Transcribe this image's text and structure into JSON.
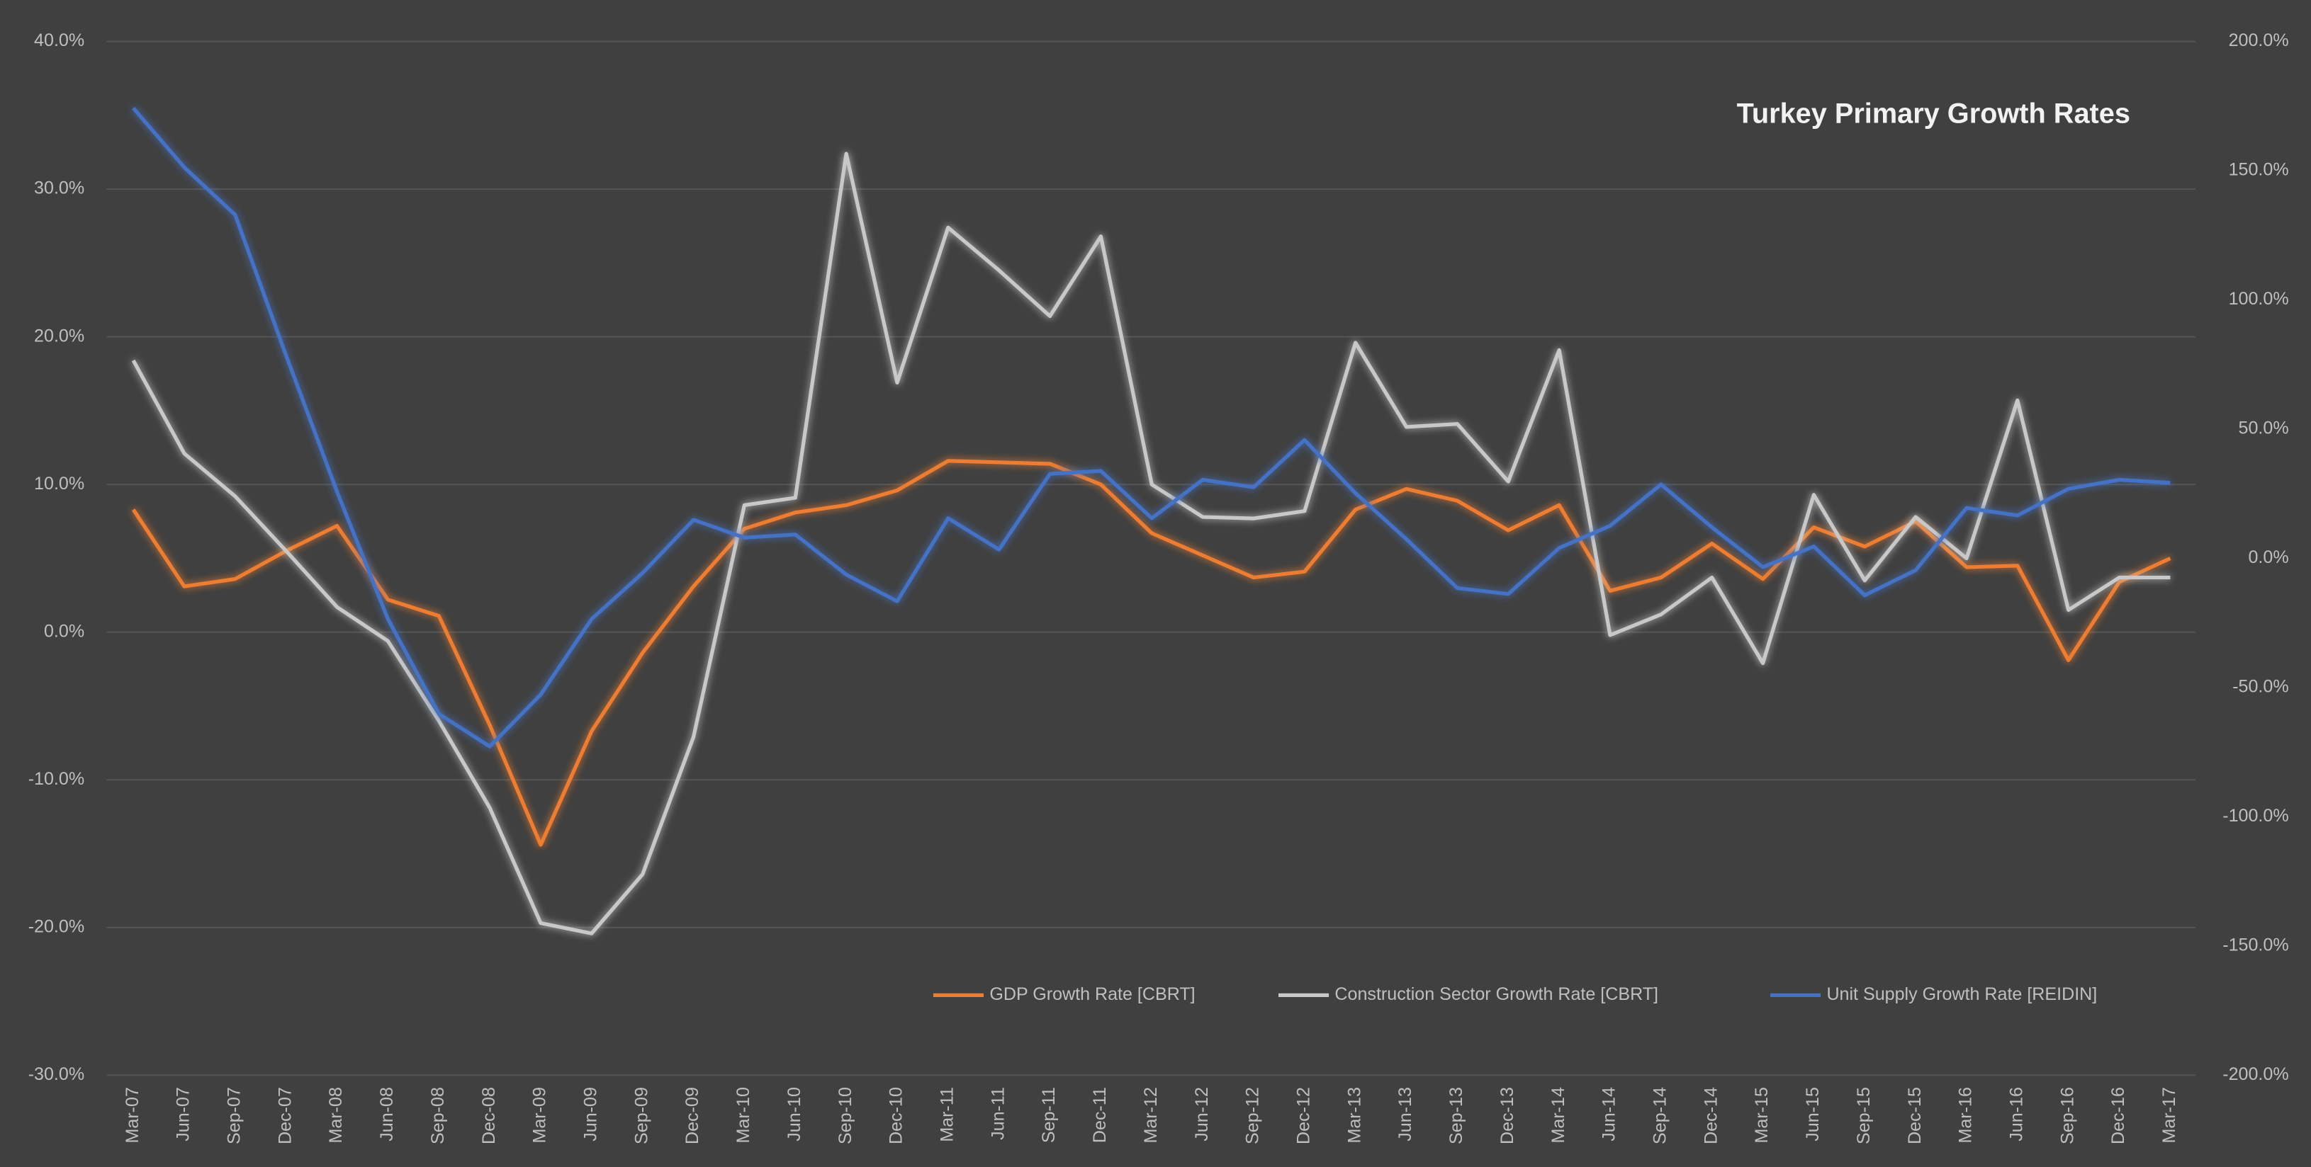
{
  "chart_data": {
    "type": "line",
    "title": "Turkey Primary Growth Rates",
    "categories": [
      "Mar-07",
      "Jun-07",
      "Sep-07",
      "Dec-07",
      "Mar-08",
      "Jun-08",
      "Sep-08",
      "Dec-08",
      "Mar-09",
      "Jun-09",
      "Sep-09",
      "Dec-09",
      "Mar-10",
      "Jun-10",
      "Sep-10",
      "Dec-10",
      "Mar-11",
      "Jun-11",
      "Sep-11",
      "Dec-11",
      "Mar-12",
      "Jun-12",
      "Sep-12",
      "Dec-12",
      "Mar-13",
      "Jun-13",
      "Sep-13",
      "Dec-13",
      "Mar-14",
      "Jun-14",
      "Sep-14",
      "Dec-14",
      "Mar-15",
      "Jun-15",
      "Sep-15",
      "Dec-15",
      "Mar-16",
      "Jun-16",
      "Sep-16",
      "Dec-16",
      "Mar-17"
    ],
    "series": [
      {
        "name": "GDP Growth Rate [CBRT]",
        "color": "#ed7d31",
        "values": [
          8.3,
          3.1,
          3.6,
          5.5,
          7.2,
          2.2,
          1.1,
          -6.3,
          -14.4,
          -6.7,
          -1.4,
          3.1,
          7.0,
          8.1,
          8.6,
          9.6,
          11.6,
          11.5,
          11.4,
          10.0,
          6.7,
          5.2,
          3.7,
          4.1,
          8.3,
          9.7,
          8.9,
          6.9,
          8.6,
          2.8,
          3.7,
          6.0,
          3.6,
          7.1,
          5.8,
          7.5,
          4.4,
          4.5,
          -1.9,
          3.4,
          5.0
        ]
      },
      {
        "name": "Construction Sector Growth Rate [CBRT]",
        "color": "#c8c8c8",
        "values": [
          18.4,
          12.1,
          9.2,
          5.5,
          1.7,
          -0.6,
          -6.0,
          -11.9,
          -19.7,
          -20.4,
          -16.4,
          -7.1,
          8.6,
          9.1,
          32.4,
          16.9,
          27.4,
          24.5,
          21.4,
          26.8,
          10.0,
          7.8,
          7.7,
          8.2,
          19.6,
          13.9,
          14.1,
          10.2,
          19.1,
          -0.2,
          1.2,
          3.7,
          -2.1,
          9.3,
          3.5,
          7.8,
          5.0,
          15.7,
          1.5,
          3.7,
          3.7
        ]
      },
      {
        "name": "Unit Supply Growth Rate [REIDIN]",
        "color": "#4472c4",
        "axis": "y2",
        "values": [
          174.2,
          151.3,
          132.9,
          78.5,
          25.8,
          -23.5,
          -60.2,
          -72.8,
          -52.7,
          -23.5,
          -5.7,
          14.9,
          8.0,
          9.2,
          -6.3,
          -16.6,
          15.5,
          3.4,
          32.7,
          33.8,
          15.5,
          30.4,
          27.5,
          45.8,
          25.2,
          7.4,
          -11.5,
          -13.8,
          4.0,
          12.6,
          28.6,
          12.0,
          -3.4,
          4.6,
          -14.3,
          -4.6,
          19.5,
          16.6,
          26.9,
          30.4,
          29.2
        ]
      }
    ],
    "ylim": [
      -30,
      40
    ],
    "yticks": [
      {
        "value": -30,
        "label": "-30.0%"
      },
      {
        "value": -20,
        "label": "-20.0%"
      },
      {
        "value": -10,
        "label": "-10.0%"
      },
      {
        "value": 0,
        "label": "0.0%"
      },
      {
        "value": 10,
        "label": "10.0%"
      },
      {
        "value": 20,
        "label": "20.0%"
      },
      {
        "value": 30,
        "label": "30.0%"
      },
      {
        "value": 40,
        "label": "40.0%"
      }
    ],
    "y2lim": [
      -200,
      200
    ],
    "y2ticks": [
      {
        "value": -200,
        "label": "-200.0%"
      },
      {
        "value": -150,
        "label": "-150.0%"
      },
      {
        "value": -100,
        "label": "-100.0%"
      },
      {
        "value": -50,
        "label": "-50.0%"
      },
      {
        "value": 0,
        "label": "0.0%"
      },
      {
        "value": 50,
        "label": "50.0%"
      },
      {
        "value": 100,
        "label": "100.0%"
      },
      {
        "value": 150,
        "label": "150.0%"
      },
      {
        "value": 200,
        "label": "200.0%"
      }
    ],
    "grid": true
  }
}
